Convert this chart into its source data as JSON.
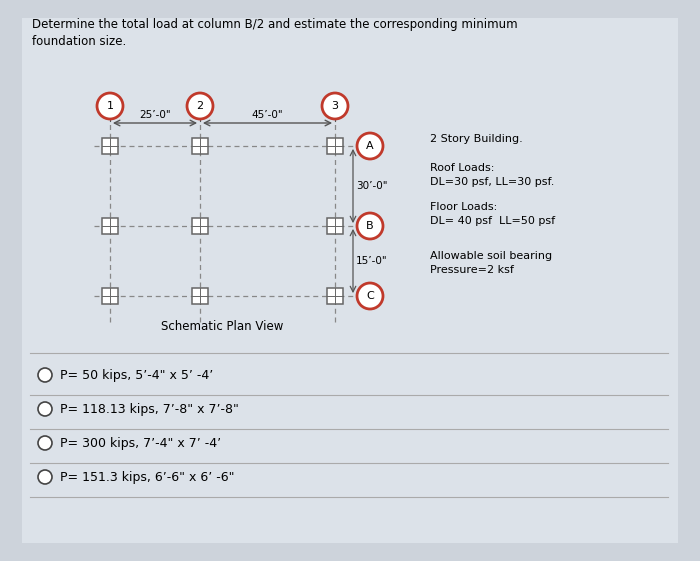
{
  "title_text": "Determine the total load at column B/2 and estimate the corresponding minimum\nfoundation size.",
  "bg_color": "#cdd3db",
  "panel_color": "#dce1e8",
  "schematic_label": "Schematic Plan View",
  "dim_25": "25’-0\"",
  "dim_45": "45’-0\"",
  "dim_30": "30’-0\"",
  "dim_15": "15’-0\"",
  "col_labels": [
    "1",
    "2",
    "3"
  ],
  "row_labels": [
    "A",
    "B",
    "C"
  ],
  "info_lines": [
    "2 Story Building.",
    "Roof Loads:",
    "DL=30 psf, LL=30 psf.",
    "Floor Loads:",
    "DL= 40 psf  LL=50 psf",
    "Allowable soil bearing",
    "Pressure=2 ksf"
  ],
  "options": [
    "P= 50 kips, 5’-4\" x 5’ -4’",
    "P= 118.13 kips, 7’-8\" x 7’-8\"",
    "P= 300 kips, 7’-4\" x 7’ -4’",
    "P= 151.3 kips, 6’-6\" x 6’ -6\""
  ],
  "circle_color": "#c0392b",
  "box_color": "#666666",
  "dashed_color": "#888888",
  "arrow_color": "#555555",
  "text_color": "#222222"
}
